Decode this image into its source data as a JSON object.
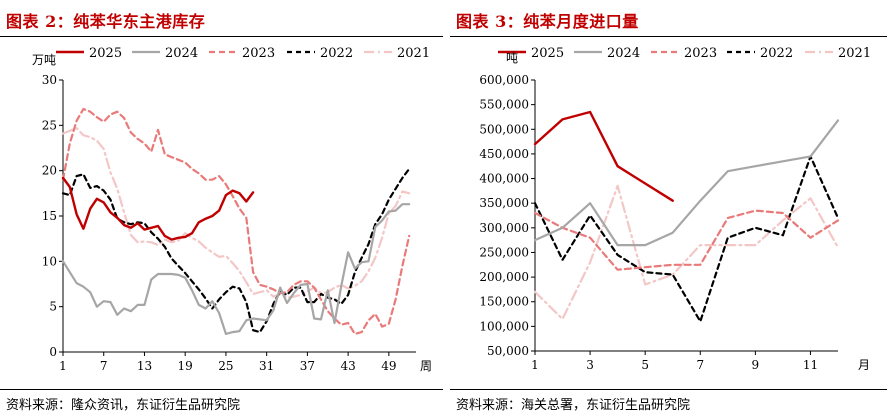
{
  "left": {
    "title": "图表 2：纯苯华东主港库存",
    "source": "资料来源：隆众资讯，东证衍生品研究院"
  },
  "right": {
    "title": "图表 3：纯苯月度进口量",
    "source": "资料来源：海关总署，东证衍生品研究院"
  },
  "chart_data": [
    {
      "type": "line",
      "title": "",
      "ylabel": "万吨",
      "xlabel": "周",
      "xticks": [
        1,
        7,
        13,
        19,
        25,
        31,
        37,
        43,
        49
      ],
      "xlim": [
        1,
        53
      ],
      "yticks": [
        0,
        5,
        10,
        15,
        20,
        25,
        30
      ],
      "ylim": [
        0,
        30
      ],
      "legend": "top",
      "grid": false,
      "series": [
        {
          "name": "2025",
          "color": "#c00000",
          "dash": "",
          "width": 2.4,
          "x": [
            1,
            2,
            3,
            4,
            5,
            6,
            7,
            8,
            9,
            10,
            11,
            12,
            13,
            14,
            15,
            16,
            17,
            18,
            19,
            20,
            21,
            22,
            23,
            24,
            25,
            26,
            27,
            28,
            29
          ],
          "y": [
            19.2,
            18.2,
            15.2,
            13.6,
            15.8,
            16.9,
            16.5,
            15.4,
            14.8,
            14.0,
            13.7,
            14.2,
            13.5,
            13.7,
            13.9,
            12.8,
            12.4,
            12.6,
            12.7,
            13.1,
            14.3,
            14.7,
            15.0,
            15.6,
            17.3,
            17.8,
            17.5,
            16.6,
            17.6
          ]
        },
        {
          "name": "2024",
          "color": "#a6a6a6",
          "dash": "",
          "width": 2.2,
          "x": [
            1,
            2,
            3,
            4,
            5,
            6,
            7,
            8,
            9,
            10,
            11,
            12,
            13,
            14,
            15,
            16,
            17,
            18,
            19,
            20,
            21,
            22,
            23,
            24,
            25,
            26,
            27,
            28,
            29,
            30,
            31,
            32,
            33,
            34,
            35,
            36,
            37,
            38,
            39,
            40,
            41,
            42,
            43,
            44,
            45,
            46,
            47,
            48,
            49,
            50,
            51,
            52
          ],
          "y": [
            10.0,
            8.8,
            7.6,
            7.2,
            6.6,
            5.0,
            5.6,
            5.5,
            4.1,
            4.8,
            4.5,
            5.2,
            5.2,
            8.0,
            8.6,
            8.6,
            8.6,
            8.5,
            8.2,
            6.8,
            5.2,
            4.8,
            5.6,
            4.3,
            2.0,
            2.2,
            2.3,
            3.5,
            3.7,
            3.6,
            3.5,
            4.6,
            7.1,
            5.4,
            6.5,
            7.4,
            7.5,
            3.7,
            3.6,
            6.8,
            3.2,
            7.3,
            11.0,
            9.2,
            9.9,
            10.0,
            13.8,
            14.5,
            15.5,
            15.6,
            16.3,
            16.3
          ]
        },
        {
          "name": "2023",
          "color": "#e97a7a",
          "dash": "6 4",
          "width": 2.2,
          "x": [
            1,
            2,
            3,
            4,
            5,
            6,
            7,
            8,
            9,
            10,
            11,
            12,
            13,
            14,
            15,
            16,
            17,
            18,
            19,
            20,
            21,
            22,
            23,
            24,
            25,
            26,
            27,
            28,
            29,
            30,
            31,
            32,
            33,
            34,
            35,
            36,
            37,
            38,
            39,
            40,
            41,
            42,
            43,
            44,
            45,
            46,
            47,
            48,
            49,
            50,
            51,
            52
          ],
          "y": [
            19.0,
            23.0,
            25.5,
            26.8,
            26.5,
            25.9,
            25.4,
            26.2,
            26.5,
            25.8,
            24.2,
            23.5,
            23.0,
            22.1,
            24.5,
            21.8,
            21.5,
            21.2,
            20.9,
            20.2,
            19.7,
            19.0,
            19.0,
            19.4,
            18.5,
            17.2,
            15.8,
            14.8,
            8.8,
            7.4,
            7.2,
            6.9,
            6.5,
            6.6,
            7.4,
            7.8,
            7.8,
            7.1,
            5.8,
            4.5,
            3.7,
            3.0,
            3.2,
            2.0,
            2.2,
            3.5,
            4.2,
            2.8,
            3.1,
            5.8,
            9.5,
            12.8
          ]
        },
        {
          "name": "2022",
          "color": "#000000",
          "dash": "5 4",
          "width": 2.2,
          "x": [
            1,
            2,
            3,
            4,
            5,
            6,
            7,
            8,
            9,
            10,
            11,
            12,
            13,
            14,
            15,
            16,
            17,
            18,
            19,
            20,
            21,
            22,
            23,
            24,
            25,
            26,
            27,
            28,
            29,
            30,
            31,
            32,
            33,
            34,
            35,
            36,
            37,
            38,
            39,
            40,
            41,
            42,
            43,
            44,
            45,
            46,
            47,
            48,
            49,
            50,
            51,
            52
          ],
          "y": [
            17.5,
            17.3,
            19.4,
            19.6,
            18.1,
            18.3,
            17.8,
            16.8,
            14.7,
            14.3,
            14.1,
            14.3,
            14.2,
            13.2,
            12.5,
            11.6,
            10.3,
            9.5,
            8.7,
            7.8,
            6.9,
            5.9,
            4.8,
            5.8,
            6.6,
            7.2,
            7.0,
            5.5,
            2.4,
            2.2,
            3.4,
            5.3,
            6.7,
            6.3,
            7.1,
            7.1,
            5.5,
            5.5,
            6.4,
            6.0,
            5.8,
            5.3,
            6.3,
            8.8,
            10.4,
            11.9,
            14.1,
            15.2,
            16.8,
            18.0,
            19.2,
            20.2
          ]
        },
        {
          "name": "2021",
          "color": "#f4c7c7",
          "dash": "10 4 2 4",
          "width": 2.2,
          "x": [
            1,
            2,
            3,
            4,
            5,
            6,
            7,
            8,
            9,
            10,
            11,
            12,
            13,
            14,
            15,
            16,
            17,
            18,
            19,
            20,
            21,
            22,
            23,
            24,
            25,
            26,
            27,
            28,
            29,
            30,
            31,
            32,
            33,
            34,
            35,
            36,
            37,
            38,
            39,
            40,
            41,
            42,
            43,
            44,
            45,
            46,
            47,
            48,
            49,
            50,
            51,
            52
          ],
          "y": [
            24.1,
            24.4,
            24.7,
            23.9,
            23.7,
            23.3,
            22.4,
            19.8,
            18.0,
            15.4,
            12.9,
            12.1,
            12.2,
            12.1,
            11.8,
            12.4,
            12.1,
            12.3,
            13.1,
            12.6,
            12.2,
            11.5,
            11.0,
            10.5,
            10.6,
            9.8,
            8.9,
            7.7,
            6.4,
            6.6,
            6.8,
            6.1,
            6.4,
            6.0,
            6.1,
            6.3,
            6.7,
            7.1,
            6.5,
            6.6,
            7.1,
            7.4,
            7.0,
            7.3,
            7.8,
            8.9,
            10.4,
            12.6,
            15.3,
            16.1,
            17.7,
            17.5
          ]
        }
      ]
    },
    {
      "type": "line",
      "title": "",
      "ylabel": "吨",
      "xlabel": "月",
      "xticks": [
        1,
        3,
        5,
        7,
        9,
        11
      ],
      "xlim": [
        1,
        12
      ],
      "yticks": [
        50000,
        100000,
        150000,
        200000,
        250000,
        300000,
        350000,
        400000,
        450000,
        500000,
        550000,
        600000
      ],
      "ytick_labels": [
        "50,000",
        "100,000",
        "150,000",
        "200,000",
        "250,000",
        "300,000",
        "350,000",
        "400,000",
        "450,000",
        "500,000",
        "550,000",
        "600,000"
      ],
      "ylim": [
        50000,
        600000
      ],
      "legend": "top",
      "grid": false,
      "series": [
        {
          "name": "2025",
          "color": "#c00000",
          "dash": "",
          "width": 2.4,
          "x": [
            1,
            2,
            3,
            4,
            5,
            6
          ],
          "y": [
            470000,
            520000,
            535000,
            425000,
            390000,
            355000
          ]
        },
        {
          "name": "2024",
          "color": "#a6a6a6",
          "dash": "",
          "width": 2.2,
          "x": [
            1,
            2,
            3,
            4,
            5,
            6,
            7,
            8,
            9,
            10,
            11,
            12
          ],
          "y": [
            275000,
            300000,
            350000,
            265000,
            265000,
            290000,
            355000,
            415000,
            425000,
            435000,
            445000,
            518000
          ]
        },
        {
          "name": "2023",
          "color": "#e97a7a",
          "dash": "6 4",
          "width": 2.2,
          "x": [
            1,
            2,
            3,
            4,
            5,
            6,
            7,
            8,
            9,
            10,
            11,
            12
          ],
          "y": [
            330000,
            300000,
            280000,
            215000,
            220000,
            225000,
            225000,
            320000,
            335000,
            330000,
            280000,
            315000
          ]
        },
        {
          "name": "2022",
          "color": "#000000",
          "dash": "5 4",
          "width": 2.2,
          "x": [
            1,
            2,
            3,
            4,
            5,
            6,
            7,
            8,
            9,
            10,
            11,
            12
          ],
          "y": [
            350000,
            235000,
            325000,
            245000,
            210000,
            205000,
            110000,
            280000,
            300000,
            285000,
            445000,
            320000
          ]
        },
        {
          "name": "2021",
          "color": "#f4c7c7",
          "dash": "10 4 2 4",
          "width": 2.2,
          "x": [
            1,
            2,
            3,
            4,
            5,
            6,
            7,
            8,
            9,
            10,
            11,
            12
          ],
          "y": [
            170000,
            115000,
            230000,
            385000,
            185000,
            205000,
            265000,
            265000,
            265000,
            315000,
            360000,
            260000
          ]
        }
      ]
    }
  ]
}
